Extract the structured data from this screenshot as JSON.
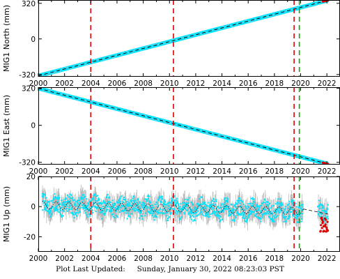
{
  "footer": {
    "label": "Plot Last Updated:",
    "timestamp": "Sunday, January 30, 2022 08:23:03 PST"
  },
  "colors": {
    "data": "#00e5ff",
    "error_bars": "#b0b0b0",
    "model": "#000000",
    "recent": "#e00000",
    "vline_red": "#dd0000",
    "vline_green": "#00aa00"
  },
  "chart_data": [
    {
      "type": "scatter",
      "ylabel": "MIG1 North (mm)",
      "xlim": [
        2000,
        2023
      ],
      "ylim": [
        -340,
        350
      ],
      "x_ticks": [
        2000,
        2002,
        2004,
        2006,
        2008,
        2010,
        2012,
        2014,
        2016,
        2018,
        2020,
        2022
      ],
      "y_ticks": [
        -320,
        0,
        320
      ],
      "series": [
        {
          "kind": "linear_trend",
          "x": [
            2000.0,
            2022.1
          ],
          "y": [
            -332,
            348
          ]
        }
      ],
      "recent_x": [
        2021.7,
        2022.1
      ],
      "vlines_red": [
        2004.0,
        2010.3,
        2019.5
      ],
      "vlines_green": [
        2019.9
      ]
    },
    {
      "type": "scatter",
      "ylabel": "MIG1 East (mm)",
      "xlim": [
        2000,
        2023
      ],
      "ylim": [
        -340,
        330
      ],
      "x_ticks": [
        2000,
        2002,
        2004,
        2006,
        2008,
        2010,
        2012,
        2014,
        2016,
        2018,
        2020,
        2022
      ],
      "y_ticks": [
        -320,
        0,
        320
      ],
      "series": [
        {
          "kind": "linear_trend",
          "x": [
            2000.0,
            2022.1
          ],
          "y": [
            320,
            -335
          ]
        }
      ],
      "recent_x": [
        2021.7,
        2022.1
      ],
      "vlines_red": [
        2004.0,
        2010.3,
        2019.5
      ],
      "vlines_green": [
        2019.9
      ]
    },
    {
      "type": "scatter",
      "ylabel": "MIG1 Up (mm)",
      "xlim": [
        2000,
        2023
      ],
      "ylim": [
        -30,
        20
      ],
      "x_ticks": [
        2000,
        2002,
        2004,
        2006,
        2008,
        2010,
        2012,
        2014,
        2016,
        2018,
        2020,
        2022
      ],
      "y_ticks": [
        -20,
        0,
        20
      ],
      "series": [
        {
          "kind": "seasonal_trend",
          "x_range": [
            2000.3,
            2022.1
          ],
          "gap": [
            2020.2,
            2021.3
          ],
          "intercept": 1,
          "slope": -0.2,
          "amplitude": 2.5,
          "scatter_half_width": 9
        }
      ],
      "recent_x": [
        2021.5,
        2022.1
      ],
      "recent_y_range": [
        -17,
        0
      ],
      "vlines_red": [
        2004.0,
        2010.3,
        2019.5
      ],
      "vlines_green": [
        2019.9
      ]
    }
  ]
}
